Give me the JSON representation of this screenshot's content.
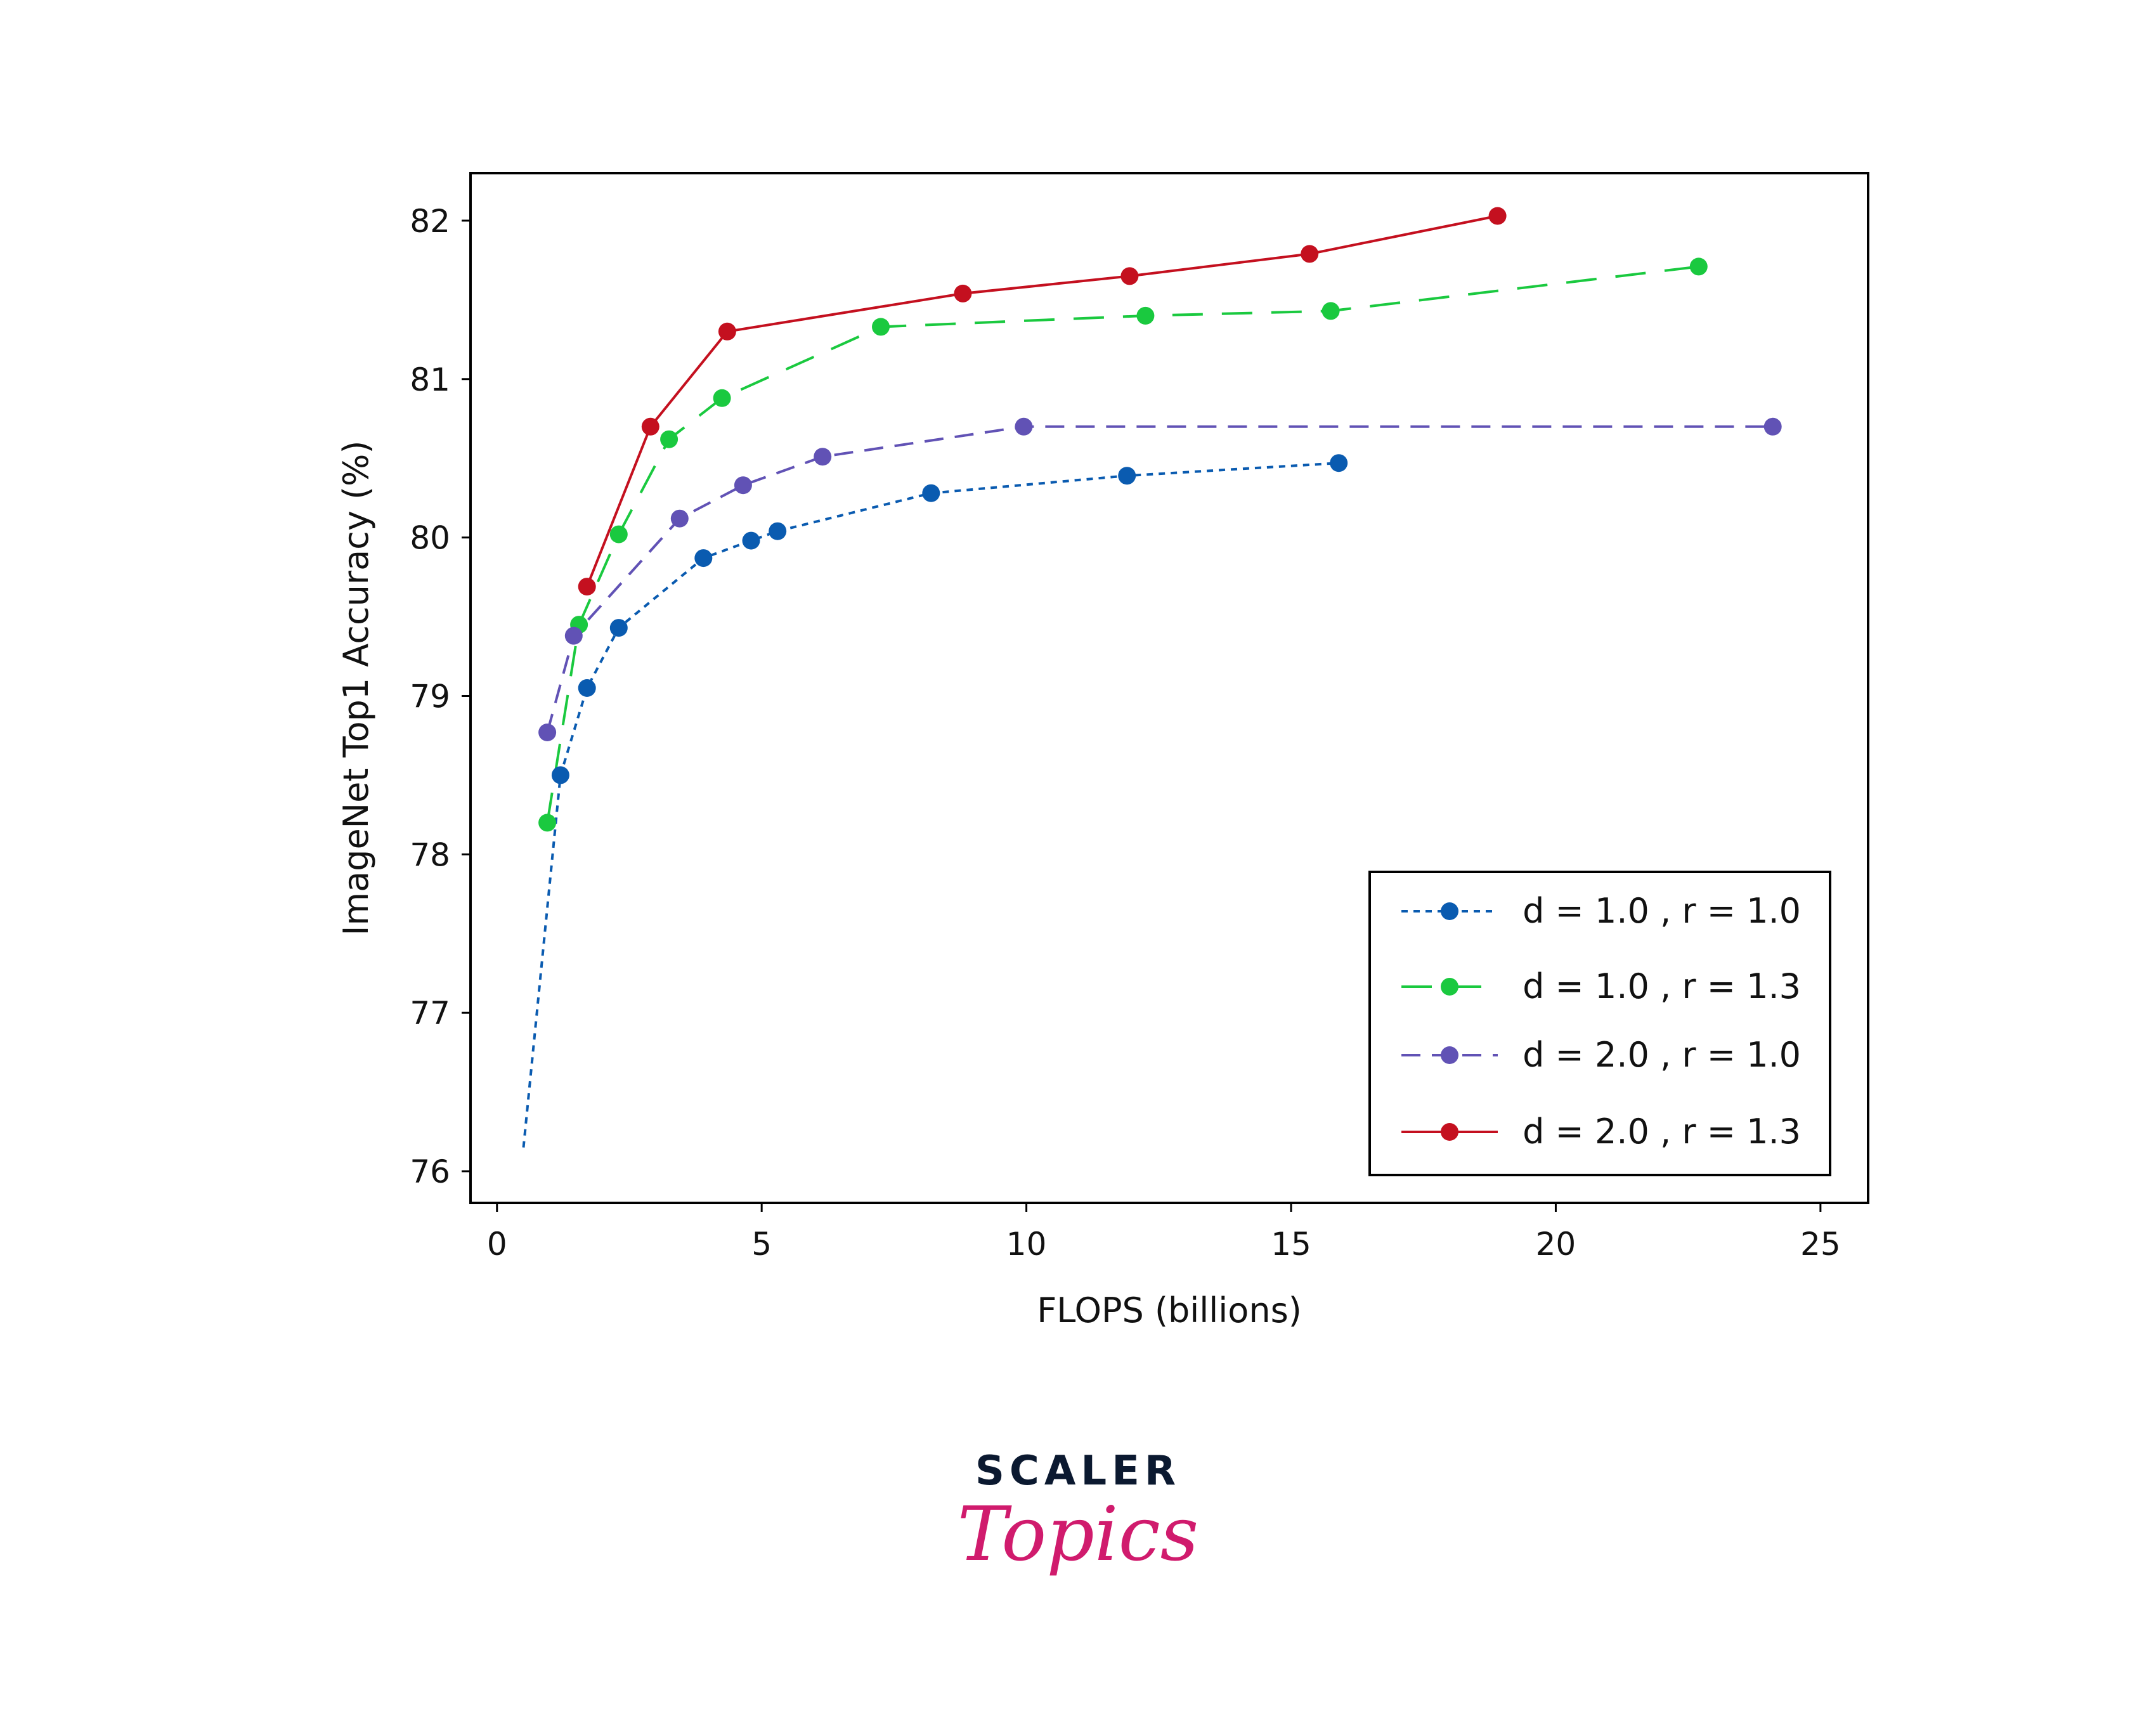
{
  "chart_data": {
    "type": "line",
    "title": "",
    "xlabel": "FLOPS (billions)",
    "ylabel": "ImageNet Top1 Accuracy (%)",
    "xlim": [
      -0.5,
      25.9
    ],
    "ylim": [
      75.8,
      82.3
    ],
    "xticks": [
      0,
      5,
      10,
      15,
      20,
      25
    ],
    "yticks": [
      76,
      77,
      78,
      79,
      80,
      81,
      82
    ],
    "grid": false,
    "legend_position": "bottom-right",
    "series": [
      {
        "name": "d = 1.0 , r = 1.0",
        "color": "#0a5bb0",
        "dash": "dotted",
        "x": [
          0.5,
          1.2,
          1.7,
          2.3,
          3.9,
          4.8,
          5.3,
          8.2,
          11.9,
          15.9
        ],
        "y": [
          76.15,
          78.5,
          79.05,
          79.43,
          79.87,
          79.98,
          80.04,
          80.28,
          80.39,
          80.47
        ],
        "markers": [
          false,
          true,
          true,
          true,
          true,
          true,
          true,
          true,
          true,
          true
        ]
      },
      {
        "name": "d = 1.0 , r = 1.3",
        "color": "#1ac93f",
        "dash": "long",
        "x": [
          0.95,
          1.55,
          2.3,
          3.25,
          4.25,
          7.25,
          12.25,
          15.75,
          22.7
        ],
        "y": [
          78.2,
          79.45,
          80.02,
          80.62,
          80.88,
          81.33,
          81.4,
          81.43,
          81.71
        ],
        "markers": [
          true,
          true,
          true,
          true,
          true,
          true,
          true,
          true,
          true
        ]
      },
      {
        "name": "d = 2.0 , r = 1.0",
        "color": "#6152b5",
        "dash": "medium",
        "x": [
          0.95,
          1.45,
          3.45,
          4.65,
          6.15,
          9.95,
          24.1
        ],
        "y": [
          78.77,
          79.38,
          80.12,
          80.33,
          80.51,
          80.7,
          80.7
        ],
        "markers": [
          true,
          true,
          true,
          true,
          true,
          true,
          true
        ]
      },
      {
        "name": "d = 2.0 , r = 1.3",
        "color": "#c4101f",
        "dash": "solid",
        "x": [
          1.7,
          2.9,
          4.35,
          8.8,
          11.95,
          15.35,
          18.9
        ],
        "y": [
          79.69,
          80.7,
          81.3,
          81.54,
          81.65,
          81.79,
          82.03
        ],
        "markers": [
          true,
          true,
          true,
          true,
          true,
          true,
          true
        ]
      }
    ]
  },
  "brand": {
    "word": "SCALER",
    "sub": "Topics"
  }
}
